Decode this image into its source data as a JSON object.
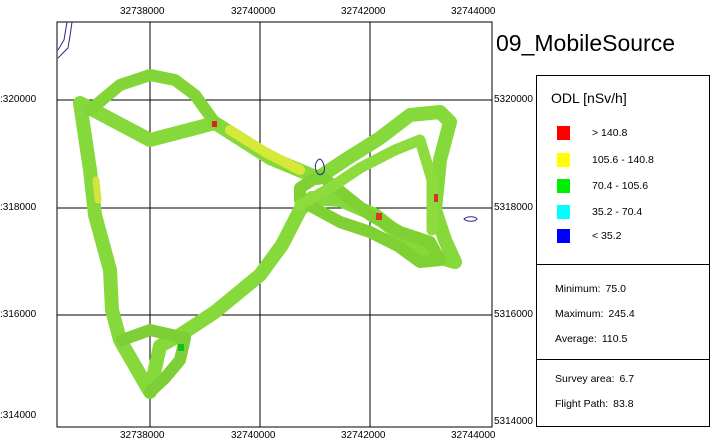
{
  "title": "09_MobileSource",
  "x_ticks": [
    "32738000",
    "32740000",
    "32742000",
    "32744000"
  ],
  "y_ticks_left": [
    ":320000",
    ":318000",
    ":316000",
    ":314000"
  ],
  "y_ticks_right": [
    "5320000",
    "5318000",
    "5316000",
    "5314000"
  ],
  "legend": {
    "title": "ODL [nSv/h]",
    "classes": [
      {
        "label": "> 140.8",
        "color": "#ff0000"
      },
      {
        "label": "105.6 - 140.8",
        "color": "#ffff00"
      },
      {
        "label": "70.4 - 105.6",
        "color": "#00ee00"
      },
      {
        "label": "35.2 - 70.4",
        "color": "#00ffff"
      },
      {
        "label": "< 35.2",
        "color": "#0000ff"
      }
    ]
  },
  "stats": {
    "minimum_label": "Minimum:",
    "minimum": "75.0",
    "maximum_label": "Maximum:",
    "maximum": "245.4",
    "average_label": "Average:",
    "average": "110.5"
  },
  "survey": {
    "area_label": "Survey area:",
    "area": "6.7",
    "path_label": "Flight Path:",
    "path": "83.8"
  },
  "map": {
    "background": "#ffffff",
    "grid_color": "#000000",
    "path_color": "#7ed52e",
    "waterbody_color": "#2a2a8a"
  }
}
